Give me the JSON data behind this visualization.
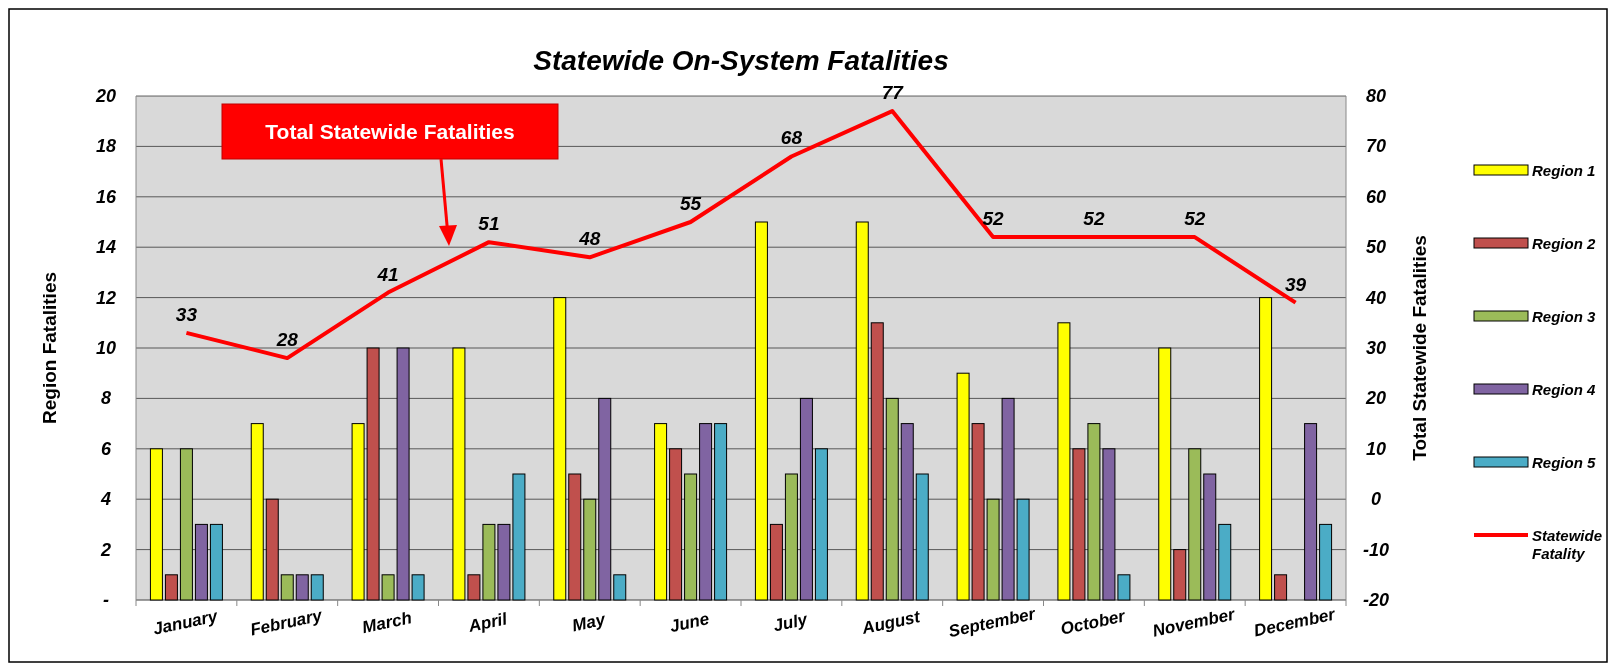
{
  "chart_data": {
    "type": "bar",
    "title": "Statewide On-System Fatalities",
    "ylabel": "Region Fatalities",
    "y2label": "Total Statewide Fatalities",
    "categories": [
      "January",
      "February",
      "March",
      "April",
      "May",
      "June",
      "July",
      "August",
      "September",
      "October",
      "November",
      "December"
    ],
    "series": [
      {
        "name": "Region 1",
        "color": "#ffff00",
        "values": [
          6,
          7,
          7,
          10,
          12,
          7,
          15,
          15,
          9,
          11,
          10,
          12
        ]
      },
      {
        "name": "Region 2",
        "color": "#c0504d",
        "values": [
          1,
          4,
          10,
          1,
          5,
          6,
          3,
          11,
          7,
          6,
          2,
          1
        ]
      },
      {
        "name": "Region 3",
        "color": "#9bbb59",
        "values": [
          6,
          1,
          1,
          3,
          4,
          5,
          5,
          8,
          4,
          7,
          6,
          0
        ]
      },
      {
        "name": "Region 4",
        "color": "#8064a2",
        "values": [
          3,
          1,
          10,
          3,
          8,
          7,
          8,
          7,
          8,
          6,
          5,
          7
        ]
      },
      {
        "name": "Region 5",
        "color": "#4bacc6",
        "values": [
          3,
          1,
          1,
          5,
          1,
          7,
          6,
          5,
          4,
          1,
          3,
          3
        ]
      },
      {
        "name": "Statewide Fatality",
        "type": "line",
        "axis": "y2",
        "color": "#ff0000",
        "values": [
          33,
          28,
          41,
          51,
          48,
          55,
          68,
          77,
          52,
          52,
          52,
          39
        ],
        "data_labels": true
      }
    ],
    "ylim": [
      0,
      20
    ],
    "yticks": [
      {
        "value": 0,
        "label": "-"
      },
      2,
      4,
      6,
      8,
      10,
      12,
      14,
      16,
      18,
      20
    ],
    "y2lim": [
      -20,
      80
    ],
    "y2ticks": [
      -20,
      -10,
      0,
      10,
      20,
      30,
      40,
      50,
      60,
      70,
      80
    ],
    "grid": "y",
    "legend": "right",
    "annotations": [
      "Total Statewide Fatalities"
    ]
  }
}
